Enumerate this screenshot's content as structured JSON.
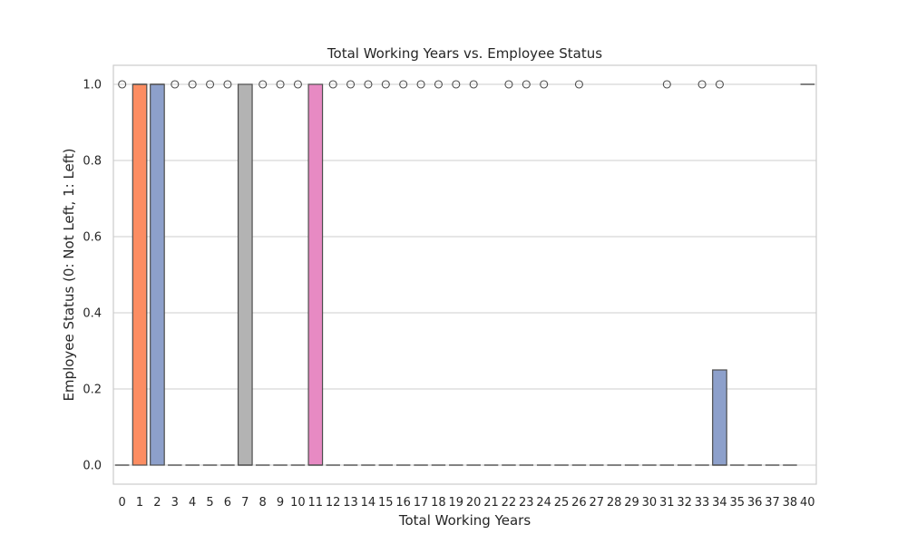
{
  "chart_data": {
    "type": "box",
    "title": "Total Working Years vs. Employee Status",
    "xlabel": "Total Working Years",
    "ylabel": "Employee Status (0: Not Left, 1: Left)",
    "ylim": [
      -0.05,
      1.05
    ],
    "yticks": [
      "0.0",
      "0.2",
      "0.4",
      "0.6",
      "0.8",
      "1.0"
    ],
    "grid": "horizontal",
    "palette": [
      "#66c2a5",
      "#fc8d62",
      "#8da0cb",
      "#e78ac3",
      "#a6d854",
      "#ffd92f",
      "#e5c494",
      "#b3b3b3"
    ],
    "categories": [
      "0",
      "1",
      "2",
      "3",
      "4",
      "5",
      "6",
      "7",
      "8",
      "9",
      "10",
      "11",
      "12",
      "13",
      "14",
      "15",
      "16",
      "17",
      "18",
      "19",
      "20",
      "21",
      "22",
      "23",
      "24",
      "25",
      "26",
      "27",
      "28",
      "29",
      "30",
      "31",
      "32",
      "33",
      "34",
      "35",
      "36",
      "37",
      "38",
      "40"
    ],
    "boxes": [
      {
        "q1": 0,
        "median": 0,
        "q3": 0,
        "whisker_low": 0,
        "whisker_high": 0,
        "outliers": [
          1
        ]
      },
      {
        "q1": 0,
        "median": 1,
        "q3": 1,
        "whisker_low": 0,
        "whisker_high": 1,
        "outliers": []
      },
      {
        "q1": 0,
        "median": 1,
        "q3": 1,
        "whisker_low": 0,
        "whisker_high": 1,
        "outliers": []
      },
      {
        "q1": 0,
        "median": 0,
        "q3": 0,
        "whisker_low": 0,
        "whisker_high": 0,
        "outliers": [
          1
        ]
      },
      {
        "q1": 0,
        "median": 0,
        "q3": 0,
        "whisker_low": 0,
        "whisker_high": 0,
        "outliers": [
          1
        ]
      },
      {
        "q1": 0,
        "median": 0,
        "q3": 0,
        "whisker_low": 0,
        "whisker_high": 0,
        "outliers": [
          1
        ]
      },
      {
        "q1": 0,
        "median": 0,
        "q3": 0,
        "whisker_low": 0,
        "whisker_high": 0,
        "outliers": [
          1
        ]
      },
      {
        "q1": 0,
        "median": 0,
        "q3": 1,
        "whisker_low": 0,
        "whisker_high": 1,
        "outliers": []
      },
      {
        "q1": 0,
        "median": 0,
        "q3": 0,
        "whisker_low": 0,
        "whisker_high": 0,
        "outliers": [
          1
        ]
      },
      {
        "q1": 0,
        "median": 0,
        "q3": 0,
        "whisker_low": 0,
        "whisker_high": 0,
        "outliers": [
          1
        ]
      },
      {
        "q1": 0,
        "median": 0,
        "q3": 0,
        "whisker_low": 0,
        "whisker_high": 0,
        "outliers": [
          1
        ]
      },
      {
        "q1": 0,
        "median": 0,
        "q3": 1,
        "whisker_low": 0,
        "whisker_high": 1,
        "outliers": []
      },
      {
        "q1": 0,
        "median": 0,
        "q3": 0,
        "whisker_low": 0,
        "whisker_high": 0,
        "outliers": [
          1
        ]
      },
      {
        "q1": 0,
        "median": 0,
        "q3": 0,
        "whisker_low": 0,
        "whisker_high": 0,
        "outliers": [
          1
        ]
      },
      {
        "q1": 0,
        "median": 0,
        "q3": 0,
        "whisker_low": 0,
        "whisker_high": 0,
        "outliers": [
          1
        ]
      },
      {
        "q1": 0,
        "median": 0,
        "q3": 0,
        "whisker_low": 0,
        "whisker_high": 0,
        "outliers": [
          1
        ]
      },
      {
        "q1": 0,
        "median": 0,
        "q3": 0,
        "whisker_low": 0,
        "whisker_high": 0,
        "outliers": [
          1
        ]
      },
      {
        "q1": 0,
        "median": 0,
        "q3": 0,
        "whisker_low": 0,
        "whisker_high": 0,
        "outliers": [
          1
        ]
      },
      {
        "q1": 0,
        "median": 0,
        "q3": 0,
        "whisker_low": 0,
        "whisker_high": 0,
        "outliers": [
          1
        ]
      },
      {
        "q1": 0,
        "median": 0,
        "q3": 0,
        "whisker_low": 0,
        "whisker_high": 0,
        "outliers": [
          1
        ]
      },
      {
        "q1": 0,
        "median": 0,
        "q3": 0,
        "whisker_low": 0,
        "whisker_high": 0,
        "outliers": [
          1
        ]
      },
      {
        "q1": 0,
        "median": 0,
        "q3": 0,
        "whisker_low": 0,
        "whisker_high": 0,
        "outliers": []
      },
      {
        "q1": 0,
        "median": 0,
        "q3": 0,
        "whisker_low": 0,
        "whisker_high": 0,
        "outliers": [
          1
        ]
      },
      {
        "q1": 0,
        "median": 0,
        "q3": 0,
        "whisker_low": 0,
        "whisker_high": 0,
        "outliers": [
          1
        ]
      },
      {
        "q1": 0,
        "median": 0,
        "q3": 0,
        "whisker_low": 0,
        "whisker_high": 0,
        "outliers": [
          1
        ]
      },
      {
        "q1": 0,
        "median": 0,
        "q3": 0,
        "whisker_low": 0,
        "whisker_high": 0,
        "outliers": []
      },
      {
        "q1": 0,
        "median": 0,
        "q3": 0,
        "whisker_low": 0,
        "whisker_high": 0,
        "outliers": [
          1
        ]
      },
      {
        "q1": 0,
        "median": 0,
        "q3": 0,
        "whisker_low": 0,
        "whisker_high": 0,
        "outliers": []
      },
      {
        "q1": 0,
        "median": 0,
        "q3": 0,
        "whisker_low": 0,
        "whisker_high": 0,
        "outliers": []
      },
      {
        "q1": 0,
        "median": 0,
        "q3": 0,
        "whisker_low": 0,
        "whisker_high": 0,
        "outliers": []
      },
      {
        "q1": 0,
        "median": 0,
        "q3": 0,
        "whisker_low": 0,
        "whisker_high": 0,
        "outliers": []
      },
      {
        "q1": 0,
        "median": 0,
        "q3": 0,
        "whisker_low": 0,
        "whisker_high": 0,
        "outliers": [
          1
        ]
      },
      {
        "q1": 0,
        "median": 0,
        "q3": 0,
        "whisker_low": 0,
        "whisker_high": 0,
        "outliers": []
      },
      {
        "q1": 0,
        "median": 0,
        "q3": 0,
        "whisker_low": 0,
        "whisker_high": 0,
        "outliers": [
          1
        ]
      },
      {
        "q1": 0,
        "median": 0,
        "q3": 0.25,
        "whisker_low": 0,
        "whisker_high": 0.25,
        "outliers": [
          1
        ]
      },
      {
        "q1": 0,
        "median": 0,
        "q3": 0,
        "whisker_low": 0,
        "whisker_high": 0,
        "outliers": []
      },
      {
        "q1": 0,
        "median": 0,
        "q3": 0,
        "whisker_low": 0,
        "whisker_high": 0,
        "outliers": []
      },
      {
        "q1": 0,
        "median": 0,
        "q3": 0,
        "whisker_low": 0,
        "whisker_high": 0,
        "outliers": []
      },
      {
        "q1": 0,
        "median": 0,
        "q3": 0,
        "whisker_low": 0,
        "whisker_high": 0,
        "outliers": []
      },
      {
        "q1": 1,
        "median": 1,
        "q3": 1,
        "whisker_low": 1,
        "whisker_high": 1,
        "outliers": []
      }
    ]
  }
}
